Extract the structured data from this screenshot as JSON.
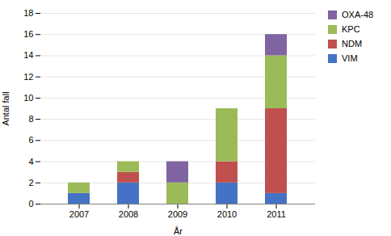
{
  "chart_data": {
    "type": "bar",
    "stacked": true,
    "categories": [
      "2007",
      "2008",
      "2009",
      "2010",
      "2011"
    ],
    "series": [
      {
        "name": "VIM",
        "color": "#4472C4",
        "values": [
          1,
          2,
          0,
          2,
          1
        ]
      },
      {
        "name": "NDM",
        "color": "#C0504D",
        "values": [
          0,
          1,
          0,
          2,
          8
        ]
      },
      {
        "name": "KPC",
        "color": "#9BBB59",
        "values": [
          1,
          1,
          2,
          5,
          5
        ]
      },
      {
        "name": "OXA-48",
        "color": "#8064A2",
        "values": [
          0,
          0,
          2,
          0,
          2
        ]
      }
    ],
    "xlabel": "År",
    "ylabel": "Antal fall",
    "ylim": [
      0,
      18
    ],
    "yticks": [
      0,
      2,
      4,
      6,
      8,
      10,
      12,
      14,
      16,
      18
    ],
    "grid": true,
    "legend": "right"
  }
}
